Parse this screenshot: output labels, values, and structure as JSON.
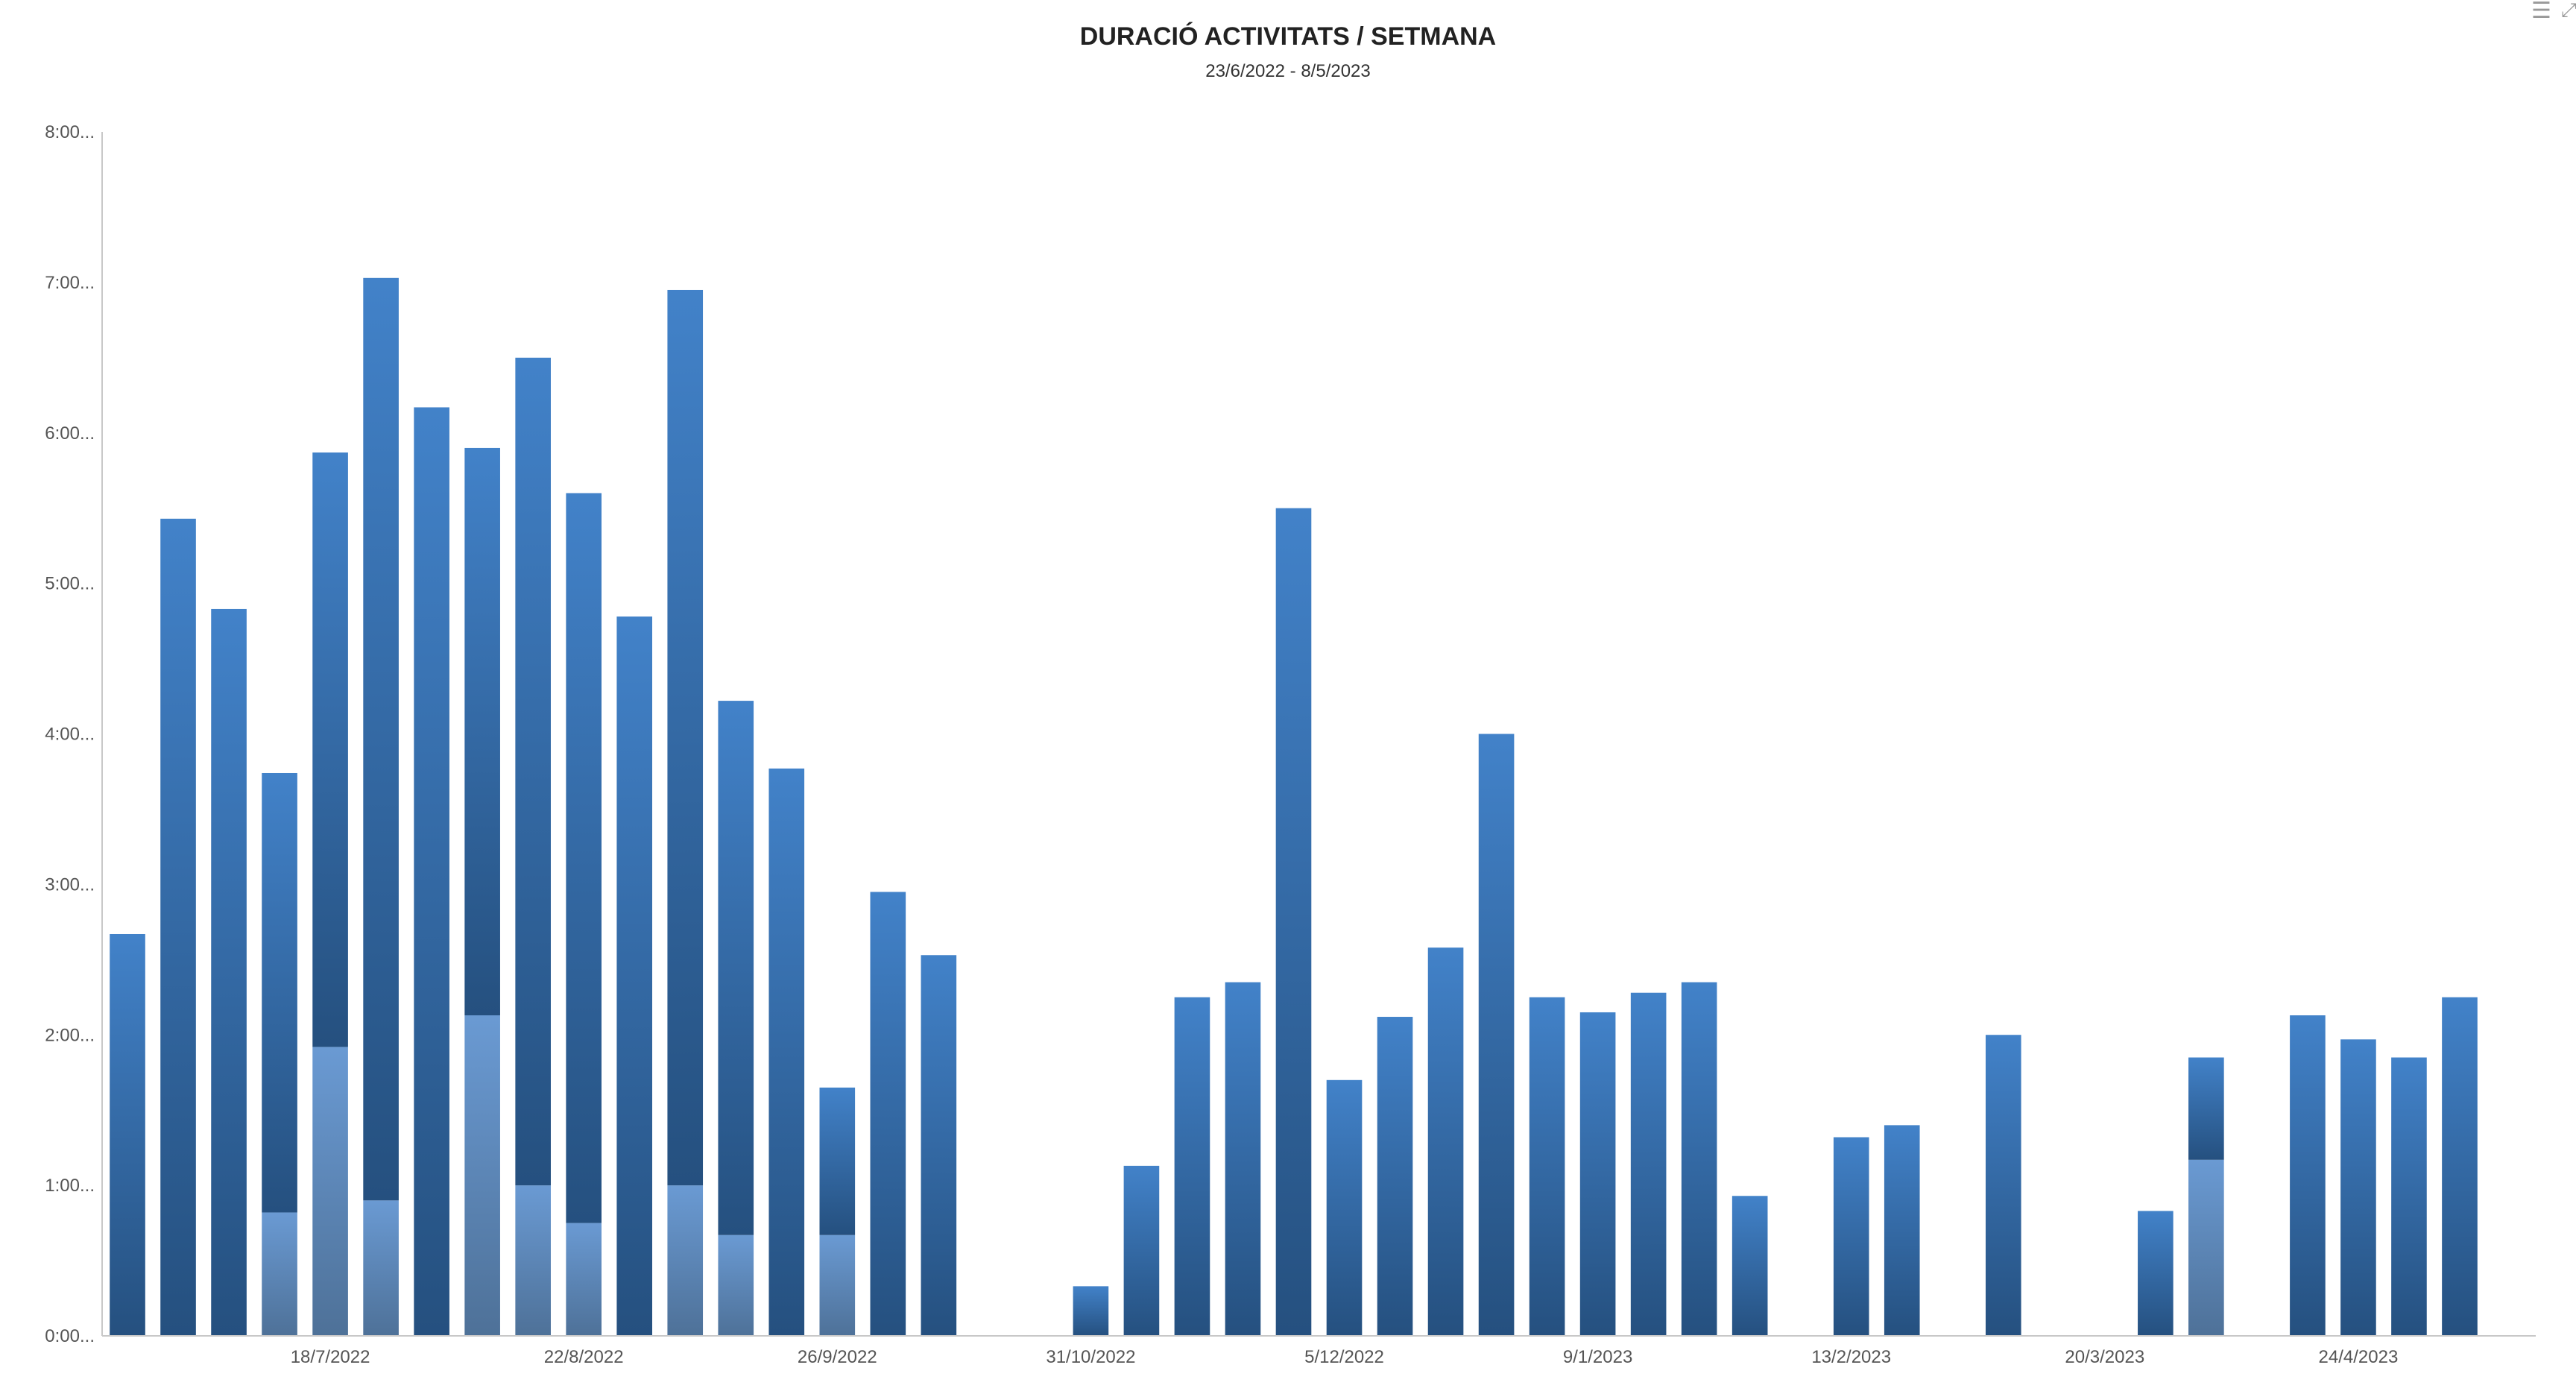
{
  "icons": {
    "menu": "menu-icon",
    "expand": "expand-icon"
  },
  "colors": {
    "bar_primary_top": "#4282c9",
    "bar_primary_bottom": "#25507f",
    "bar_secondary_top": "#6a9ad3",
    "bar_secondary_bottom": "#4e7198",
    "axis": "#c8c8c8"
  },
  "chart_data": {
    "type": "bar",
    "stacked": true,
    "title": "DURACIÓ ACTIVITATS / SETMANA",
    "subtitle": "23/6/2022 - 8/5/2023",
    "xlabel": "",
    "ylabel": "",
    "y_unit": "hours",
    "ylim": [
      0,
      8
    ],
    "y_ticks": [
      "0:00...",
      "1:00...",
      "2:00...",
      "3:00...",
      "4:00...",
      "5:00...",
      "6:00...",
      "7:00...",
      "8:00..."
    ],
    "x_tick_labels": [
      {
        "label": "18/7/2022",
        "index": 4.5
      },
      {
        "label": "22/8/2022",
        "index": 9.5
      },
      {
        "label": "26/9/2022",
        "index": 14.5
      },
      {
        "label": "31/10/2022",
        "index": 19.5
      },
      {
        "label": "5/12/2022",
        "index": 24.5
      },
      {
        "label": "9/1/2023",
        "index": 29.5
      },
      {
        "label": "13/2/2023",
        "index": 34.5
      },
      {
        "label": "20/3/2023",
        "index": 39.5
      },
      {
        "label": "24/4/2023",
        "index": 44.5
      }
    ],
    "grid": false,
    "series": [
      {
        "values": [
          0,
          0,
          0,
          0.82,
          1.92,
          0.9,
          0,
          2.13,
          1.0,
          0.75,
          0,
          1.0,
          0.67,
          0,
          0.67,
          0,
          0,
          0,
          0,
          0,
          0,
          0,
          0,
          0,
          0,
          0,
          0,
          0,
          0,
          0,
          0,
          0,
          0,
          0,
          0,
          0,
          0,
          0,
          0,
          0,
          0,
          1.17,
          0,
          0,
          0,
          0,
          0,
          0
        ]
      },
      {
        "values": [
          2.67,
          5.43,
          4.83,
          2.92,
          3.95,
          6.13,
          6.17,
          3.77,
          5.5,
          4.85,
          4.78,
          5.95,
          3.55,
          3.77,
          0.98,
          2.95,
          2.53,
          0,
          0,
          0.33,
          1.13,
          2.25,
          2.35,
          5.5,
          1.7,
          2.12,
          2.58,
          4.0,
          2.25,
          2.15,
          2.28,
          2.35,
          0.93,
          0,
          1.32,
          1.4,
          0,
          2.0,
          0,
          0,
          0.83,
          0.68,
          0,
          2.13,
          1.97,
          1.85,
          2.25,
          0
        ]
      }
    ]
  }
}
